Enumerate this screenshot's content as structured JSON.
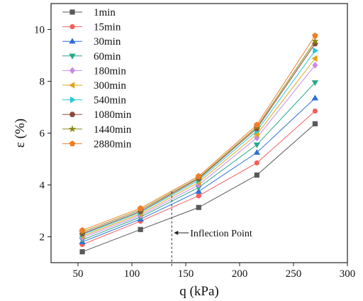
{
  "chart_data": {
    "type": "line",
    "xlabel": "q (kPa)",
    "ylabel": "ε (%)",
    "xlim": [
      25,
      300
    ],
    "ylim": [
      1,
      11
    ],
    "xticks": [
      50,
      100,
      150,
      200,
      250,
      300
    ],
    "yticks": [
      2,
      4,
      6,
      8,
      10
    ],
    "x": [
      54,
      108,
      162,
      216,
      270
    ],
    "legend_position": "top-left",
    "series": [
      {
        "name": "1min",
        "color": "#595959",
        "marker": "square",
        "values": [
          1.42,
          2.28,
          3.13,
          4.38,
          6.36
        ]
      },
      {
        "name": "15min",
        "color": "#f0605a",
        "marker": "circle",
        "values": [
          1.7,
          2.6,
          3.58,
          4.85,
          6.85
        ]
      },
      {
        "name": "30min",
        "color": "#2f6fd6",
        "marker": "triangle-up",
        "values": [
          1.8,
          2.68,
          3.75,
          5.25,
          7.35
        ]
      },
      {
        "name": "60min",
        "color": "#26a889",
        "marker": "triangle-down",
        "values": [
          1.88,
          2.76,
          3.9,
          5.55,
          7.95
        ]
      },
      {
        "name": "180min",
        "color": "#c88ae6",
        "marker": "diamond",
        "values": [
          1.96,
          2.82,
          4.0,
          5.82,
          8.62
        ]
      },
      {
        "name": "300min",
        "color": "#e0a418",
        "marker": "triangle-left",
        "values": [
          2.02,
          2.88,
          4.1,
          5.95,
          8.88
        ]
      },
      {
        "name": "540min",
        "color": "#26c6d8",
        "marker": "triangle-right",
        "values": [
          2.08,
          2.94,
          4.18,
          6.08,
          9.18
        ]
      },
      {
        "name": "1080min",
        "color": "#8c4a3a",
        "marker": "hexagon",
        "values": [
          2.12,
          2.98,
          4.24,
          6.18,
          9.45
        ]
      },
      {
        "name": "1440min",
        "color": "#8a8a18",
        "marker": "star",
        "values": [
          2.18,
          3.04,
          4.28,
          6.24,
          9.55
        ]
      },
      {
        "name": "2880min",
        "color": "#f07e26",
        "marker": "pentagon",
        "values": [
          2.25,
          3.1,
          4.34,
          6.32,
          9.76
        ]
      }
    ],
    "annotations": [
      {
        "text": "Inflection Point",
        "x": 137,
        "y_top": 3.75,
        "y_bottom": 0.8
      }
    ]
  }
}
